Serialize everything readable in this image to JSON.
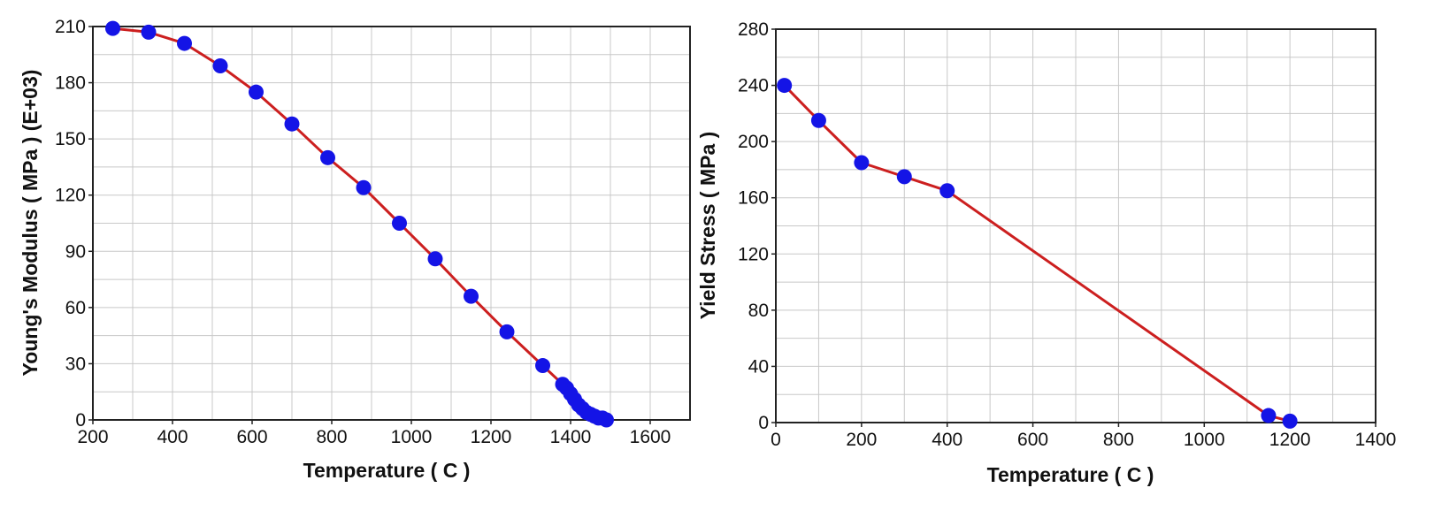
{
  "chart_data": [
    {
      "type": "line",
      "xlabel": "Temperature ( C )",
      "ylabel": "Young's Modulus ( MPa ) (E+03)",
      "xlim": [
        200,
        1700
      ],
      "ylim": [
        0,
        210
      ],
      "xticks": [
        200,
        400,
        600,
        800,
        1000,
        1200,
        1400,
        1600
      ],
      "yticks": [
        0,
        30,
        60,
        90,
        120,
        150,
        180,
        210
      ],
      "grid": true,
      "line_color": "#cc1f1f",
      "marker_color": "#1414e6",
      "series": [
        {
          "x": [
            250,
            340,
            430,
            520,
            610,
            700,
            790,
            880,
            970,
            1060,
            1150,
            1240,
            1330,
            1380,
            1390,
            1400,
            1410,
            1420,
            1430,
            1440,
            1450,
            1460,
            1470,
            1480,
            1490
          ],
          "y": [
            209,
            207,
            201,
            189,
            175,
            158,
            140,
            124,
            105,
            86,
            66,
            47,
            29,
            19,
            17,
            14,
            11,
            8,
            6,
            4,
            3,
            2,
            1,
            1,
            0
          ]
        }
      ]
    },
    {
      "type": "line",
      "xlabel": "Temperature ( C )",
      "ylabel": "Yield Stress ( MPa )",
      "xlim": [
        0,
        1400
      ],
      "ylim": [
        0,
        280
      ],
      "xticks": [
        0,
        200,
        400,
        600,
        800,
        1000,
        1200,
        1400
      ],
      "yticks": [
        0,
        40,
        80,
        120,
        160,
        200,
        240,
        280
      ],
      "grid": true,
      "line_color": "#cc1f1f",
      "marker_color": "#1414e6",
      "series": [
        {
          "x": [
            20,
            100,
            200,
            300,
            400,
            1150,
            1200
          ],
          "y": [
            240,
            215,
            185,
            175,
            165,
            5,
            1
          ]
        }
      ]
    }
  ]
}
